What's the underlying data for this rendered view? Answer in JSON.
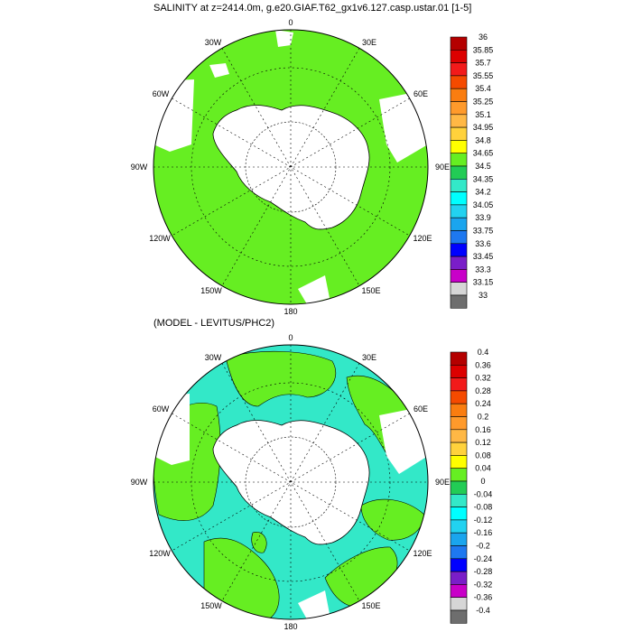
{
  "top_panel": {
    "title": "SALINITY at z=2414.0m, g.e20.GIAF.T62_gx1v6.127.casp.ustar.01 [1-5]",
    "lon_labels": {
      "n": "0",
      "e30": "30E",
      "e60": "60E",
      "e90": "90E",
      "e120": "120E",
      "e150": "150E",
      "s": "180",
      "w150": "150W",
      "w120": "120W",
      "w90": "90W",
      "w60": "60W",
      "w30": "30W"
    },
    "colorbar": {
      "labels": [
        "36",
        "35.85",
        "35.7",
        "35.55",
        "35.4",
        "35.25",
        "35.1",
        "34.95",
        "34.8",
        "34.65",
        "34.5",
        "34.35",
        "34.2",
        "34.05",
        "33.9",
        "33.75",
        "33.6",
        "33.45",
        "33.3",
        "33.15",
        "33"
      ],
      "colors": [
        "#b40000",
        "#dc0000",
        "#f21a1a",
        "#f54a00",
        "#fa7d10",
        "#ff9a2b",
        "#ffb845",
        "#ffd23c",
        "#ffff00",
        "#66ee22",
        "#22cc55",
        "#33e8c8",
        "#00ffff",
        "#22d2f0",
        "#1aa5ee",
        "#1e78f0",
        "#0000ff",
        "#7a1ec8",
        "#c800c8",
        "#d6d6d6",
        "#6e6e6e"
      ]
    }
  },
  "bottom_panel": {
    "title": "(MODEL - LEVITUS/PHC2)",
    "lon_labels": {
      "n": "0",
      "e30": "30E",
      "e60": "60E",
      "e90": "90E",
      "e120": "120E",
      "e150": "150E",
      "s": "180",
      "w150": "150W",
      "w120": "120W",
      "w90": "90W",
      "w60": "60W",
      "w30": "30W"
    },
    "colorbar": {
      "labels": [
        "0.4",
        "0.36",
        "0.32",
        "0.28",
        "0.24",
        "0.2",
        "0.16",
        "0.12",
        "0.08",
        "0.04",
        "0",
        "-0.04",
        "-0.08",
        "-0.12",
        "-0.16",
        "-0.2",
        "-0.24",
        "-0.28",
        "-0.32",
        "-0.36",
        "-0.4"
      ],
      "colors": [
        "#b40000",
        "#dc0000",
        "#f21a1a",
        "#f54a00",
        "#fa7d10",
        "#ff9a2b",
        "#ffb845",
        "#ffd23c",
        "#ffff00",
        "#66ee22",
        "#22cc55",
        "#33e8c8",
        "#00ffff",
        "#22d2f0",
        "#1aa5ee",
        "#1e78f0",
        "#0000ff",
        "#7a1ec8",
        "#c800c8",
        "#d6d6d6",
        "#6e6e6e"
      ]
    }
  },
  "colors": {
    "green": "#66ee22",
    "cyan": "#33e8c8",
    "land": "#ffffff"
  }
}
